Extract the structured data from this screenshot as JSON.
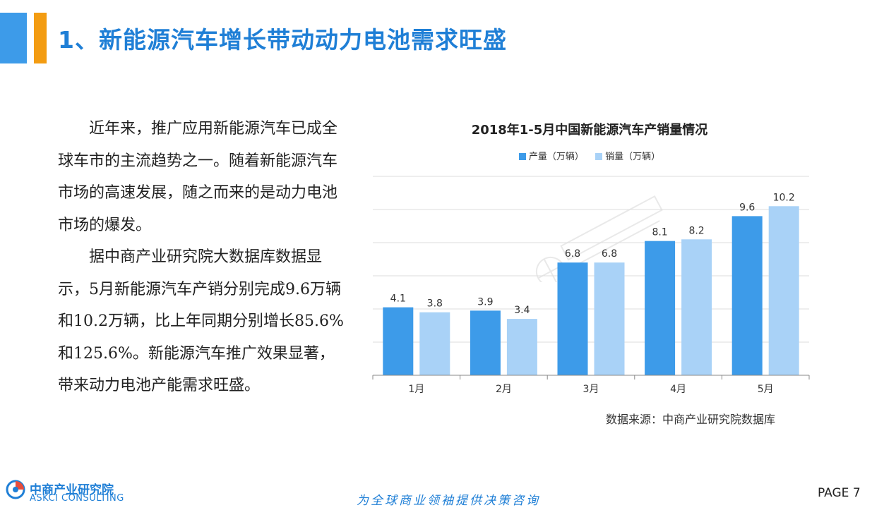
{
  "header": {
    "title": "1、新能源汽车增长带动动力电池需求旺盛"
  },
  "body": {
    "paragraphs": [
      "近年来，推广应用新能源汽车已成全球车市的主流趋势之一。随着新能源汽车市场的高速发展，随之而来的是动力电池市场的爆发。",
      "据中商产业研究院大数据库数据显示，5月新能源汽车产销分别完成9.6万辆和10.2万辆，比上年同期分别增长85.6%和125.6%。新能源汽车推广效果显著，带来动力电池产能需求旺盛。"
    ]
  },
  "chart_data": {
    "type": "bar",
    "title": "2018年1-5月中国新能源汽车产销量情况",
    "categories": [
      "1月",
      "2月",
      "3月",
      "4月",
      "5月"
    ],
    "series": [
      {
        "name": "产量（万辆）",
        "color": "#3d9be9",
        "values": [
          4.1,
          3.9,
          6.8,
          8.1,
          9.6
        ]
      },
      {
        "name": "销量（万辆）",
        "color": "#a9d2f7",
        "values": [
          3.8,
          3.4,
          6.8,
          8.2,
          10.2
        ]
      }
    ],
    "ylim": [
      0,
      12
    ],
    "grid": true,
    "legend": "top"
  },
  "source": "数据来源：中商产业研究院数据库",
  "footer": {
    "logo_cn": "中商产业研究院",
    "logo_en": "ASKCI CONSULTING",
    "slogan": "为全球商业领袖提供决策咨询",
    "page": "PAGE  7"
  },
  "colors": {
    "accent_blue": "#1f7fd6",
    "accent_orange": "#f39c12"
  }
}
